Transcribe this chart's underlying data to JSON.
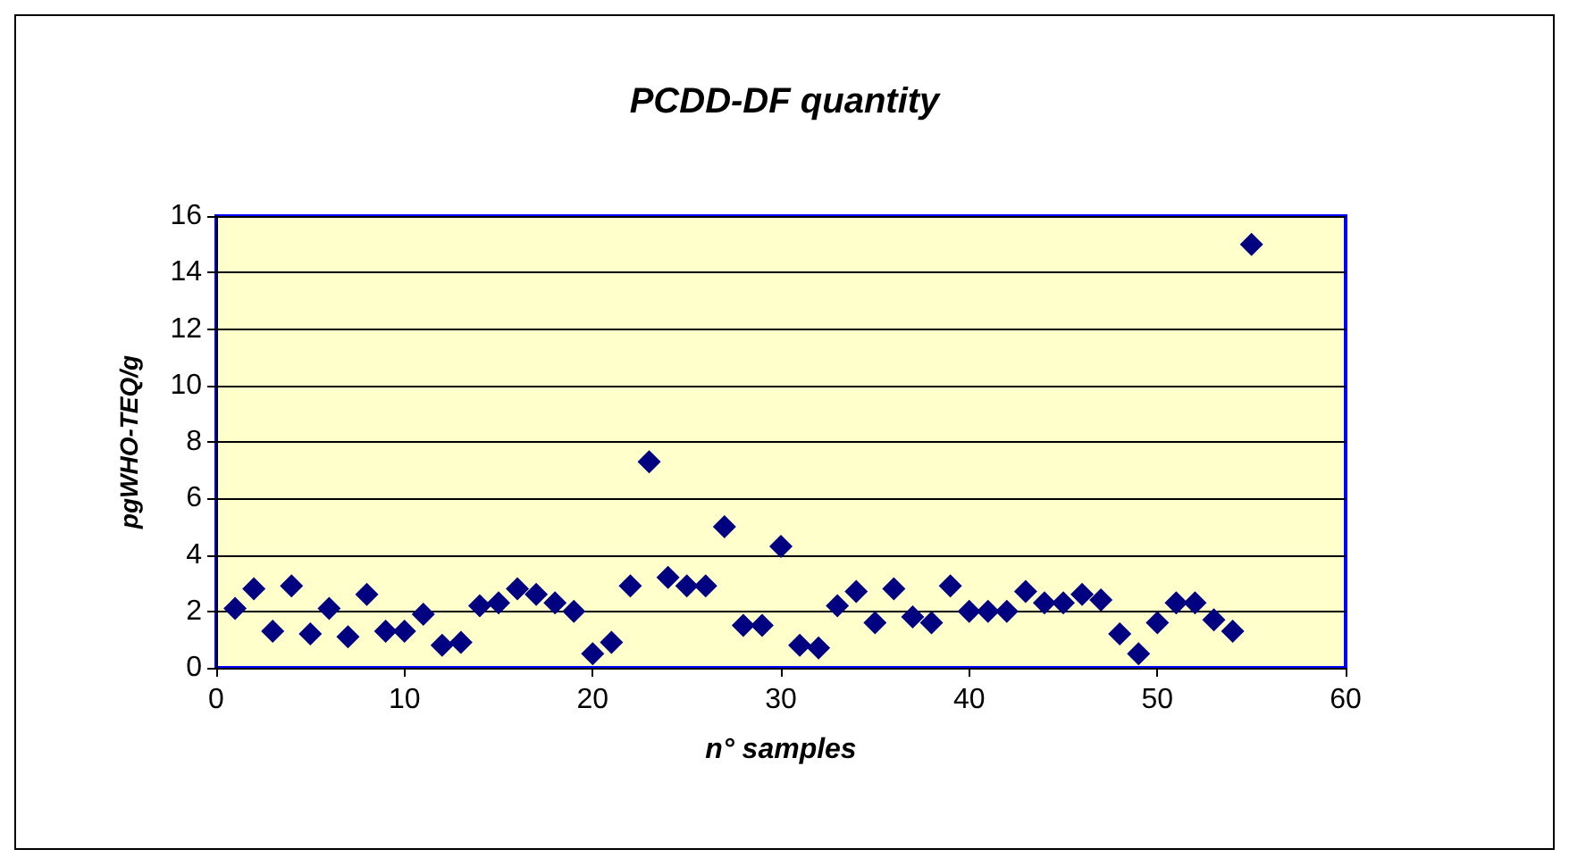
{
  "chart_data": {
    "type": "scatter",
    "title": "PCDD-DF quantity",
    "xlabel": "n° samples",
    "ylabel": "pgWHO-TEQ/g",
    "x": [
      1,
      2,
      3,
      4,
      5,
      6,
      7,
      8,
      9,
      10,
      11,
      12,
      13,
      14,
      15,
      16,
      17,
      18,
      19,
      20,
      21,
      22,
      23,
      24,
      25,
      26,
      27,
      28,
      29,
      30,
      31,
      32,
      33,
      34,
      35,
      36,
      37,
      38,
      39,
      40,
      41,
      42,
      43,
      44,
      45,
      46,
      47,
      48,
      49,
      50,
      51,
      52,
      53,
      54,
      55
    ],
    "series": [
      {
        "color": "#000080",
        "values": [
          2.1,
          2.8,
          1.3,
          2.9,
          1.2,
          2.1,
          1.1,
          2.6,
          1.3,
          1.3,
          1.9,
          0.8,
          0.9,
          2.2,
          2.3,
          2.8,
          2.6,
          2.3,
          2.0,
          0.5,
          0.9,
          2.9,
          7.3,
          3.2,
          2.9,
          2.9,
          5.0,
          1.5,
          1.5,
          4.3,
          0.8,
          0.7,
          2.2,
          2.7,
          1.6,
          2.8,
          1.8,
          1.6,
          2.9,
          2.0,
          2.0,
          2.0,
          2.7,
          2.3,
          2.3,
          2.6,
          2.4,
          1.2,
          0.5,
          1.6,
          2.3,
          2.3,
          1.7,
          1.3,
          15.0
        ]
      }
    ],
    "xlim": [
      0,
      60
    ],
    "xticks": [
      0,
      10,
      20,
      30,
      40,
      50,
      60
    ],
    "ylim": [
      0,
      16
    ],
    "yticks": [
      0,
      2,
      4,
      6,
      8,
      10,
      12,
      14,
      16
    ],
    "grid": "y",
    "marker": "diamond"
  }
}
